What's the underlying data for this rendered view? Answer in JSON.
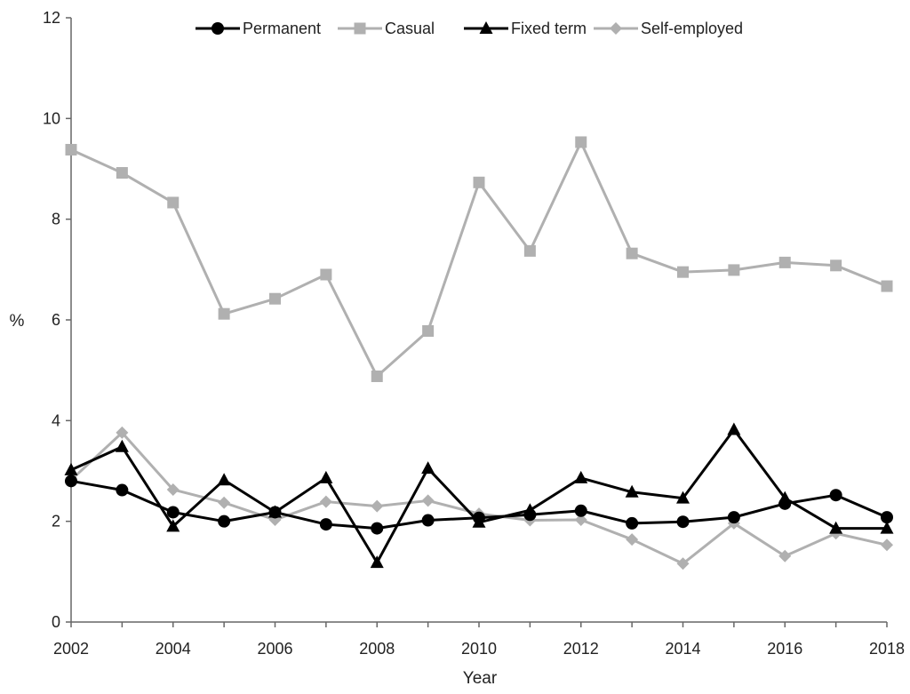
{
  "chart_data": {
    "type": "line",
    "title": "",
    "xlabel": "Year",
    "ylabel": "%",
    "xlim": [
      2002,
      2018
    ],
    "ylim": [
      0,
      12
    ],
    "x_ticks": [
      "2002",
      "2004",
      "2006",
      "2008",
      "2010",
      "2012",
      "2014",
      "2016",
      "2018"
    ],
    "y_ticks": [
      "0",
      "2",
      "4",
      "6",
      "8",
      "10",
      "12"
    ],
    "grid": false,
    "legend_position": "top",
    "x": [
      2002,
      2003,
      2004,
      2005,
      2006,
      2007,
      2008,
      2009,
      2010,
      2011,
      2012,
      2013,
      2014,
      2015,
      2016,
      2017,
      2018
    ],
    "series": [
      {
        "name": "Permanent",
        "color": "#000000",
        "marker": "circle",
        "values": [
          2.8,
          2.62,
          2.18,
          2.0,
          2.18,
          1.94,
          1.86,
          2.02,
          2.07,
          2.13,
          2.21,
          1.96,
          1.99,
          2.08,
          2.35,
          2.52,
          2.08
        ]
      },
      {
        "name": "Casual",
        "color": "#b0b0b0",
        "marker": "square",
        "values": [
          9.38,
          8.92,
          8.33,
          6.12,
          6.42,
          6.9,
          4.88,
          5.78,
          8.73,
          7.37,
          9.53,
          7.32,
          6.95,
          6.99,
          7.14,
          7.08,
          6.67
        ]
      },
      {
        "name": "Fixed term",
        "color": "#000000",
        "marker": "triangle",
        "values": [
          3.02,
          3.48,
          1.9,
          2.82,
          2.18,
          2.86,
          1.18,
          3.05,
          1.98,
          2.22,
          2.86,
          2.58,
          2.46,
          3.82,
          2.46,
          1.86,
          1.86
        ]
      },
      {
        "name": "Self-employed",
        "color": "#b0b0b0",
        "marker": "diamond",
        "values": [
          2.82,
          3.76,
          2.63,
          2.37,
          2.03,
          2.39,
          2.3,
          2.41,
          2.15,
          2.02,
          2.03,
          1.64,
          1.16,
          1.96,
          1.31,
          1.76,
          1.53
        ]
      }
    ]
  }
}
